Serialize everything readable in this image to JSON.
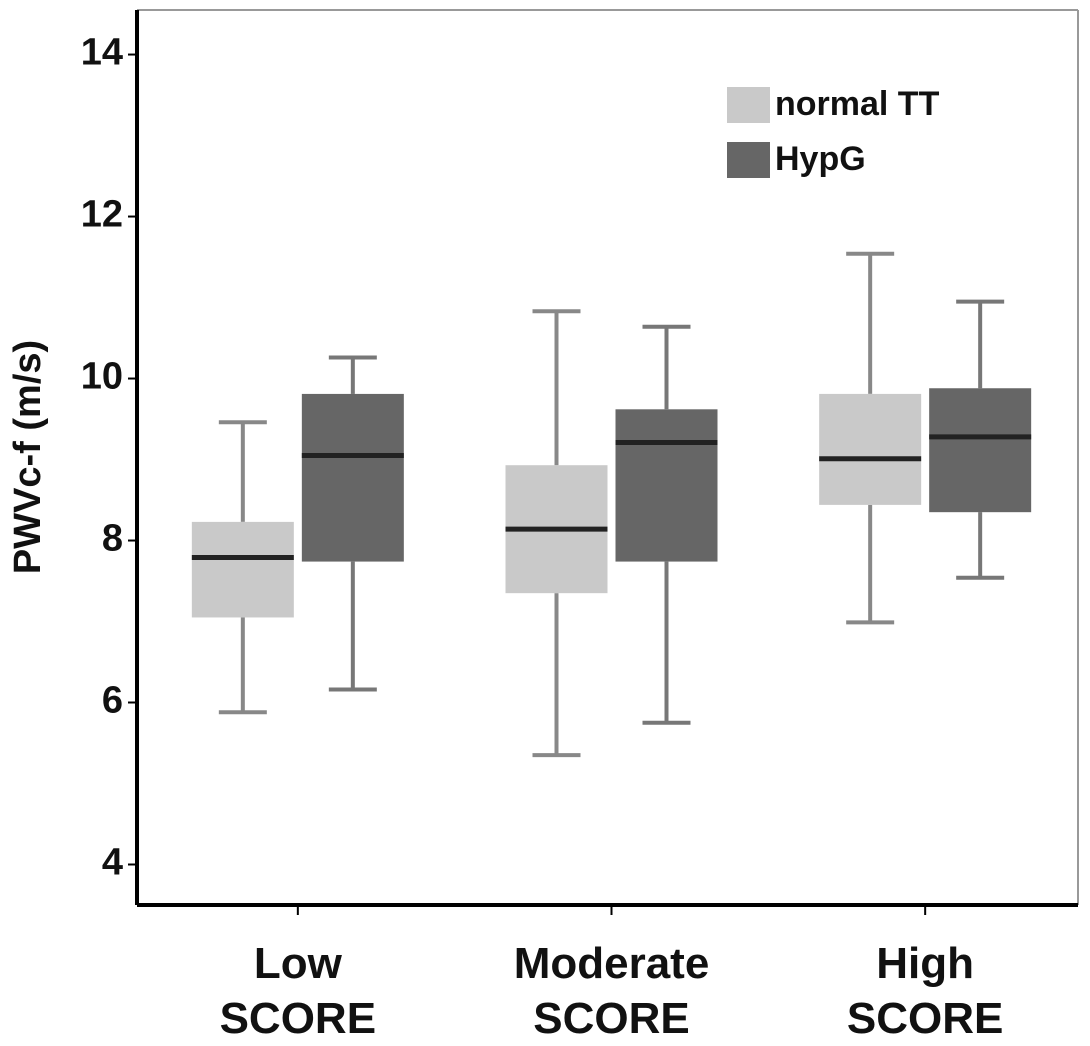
{
  "chart_data": {
    "type": "box",
    "y_label": "PWVc-f (m/s)",
    "categories": [
      "Low SCORE",
      "Moderate SCORE",
      "High SCORE"
    ],
    "series": [
      {
        "name": "normal TT",
        "color": "#c9c9c9",
        "min": [
          5.88,
          5.35,
          6.99
        ],
        "q1": [
          7.05,
          7.35,
          8.44
        ],
        "median": [
          7.79,
          8.14,
          9.01
        ],
        "q3": [
          8.23,
          8.93,
          9.81
        ],
        "max": [
          9.46,
          10.83,
          11.54
        ]
      },
      {
        "name": "HypG",
        "color": "#666666",
        "min": [
          6.16,
          5.75,
          7.54
        ],
        "q1": [
          7.74,
          7.74,
          8.35
        ],
        "median": [
          9.05,
          9.21,
          9.28
        ],
        "q3": [
          9.81,
          9.62,
          9.88
        ],
        "max": [
          10.26,
          10.64,
          10.95
        ]
      }
    ],
    "ylim": [
      3.5,
      14.55
    ],
    "yticks": [
      4,
      6,
      8,
      10,
      12,
      14
    ],
    "legend": "top-right"
  }
}
